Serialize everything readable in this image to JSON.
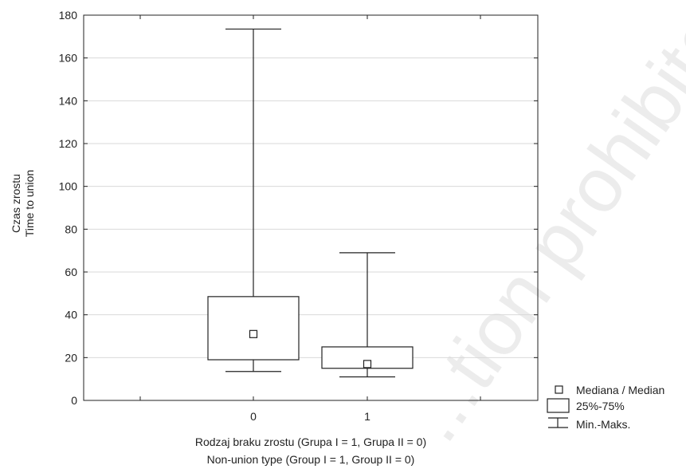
{
  "chart_data": {
    "type": "boxplot",
    "categories": [
      "0",
      "1"
    ],
    "boxes": [
      {
        "category": "0",
        "min": 13.5,
        "q1": 19,
        "median": 31,
        "q3": 48.5,
        "max": 173.5
      },
      {
        "category": "1",
        "min": 11,
        "q1": 15,
        "median": 17,
        "q3": 25,
        "max": 69
      }
    ],
    "ylim": [
      0,
      180
    ],
    "yticks": [
      0,
      20,
      40,
      60,
      80,
      100,
      120,
      140,
      160,
      180
    ],
    "ylabel_line1": "Czas zrostu",
    "ylabel_line2": "Time to union",
    "xlabel_line1": "Rodzaj braku zrostu (Grupa I = 1, Grupa II = 0)",
    "xlabel_line2": "Non-union type (Group I = 1, Group II = 0)",
    "grid": "horizontal",
    "legend_position": "bottom-right",
    "legend": {
      "median": "Mediana / Median",
      "box": "25%-75%",
      "whisker": "Min.-Maks."
    }
  },
  "watermark": "...tion prohibited"
}
